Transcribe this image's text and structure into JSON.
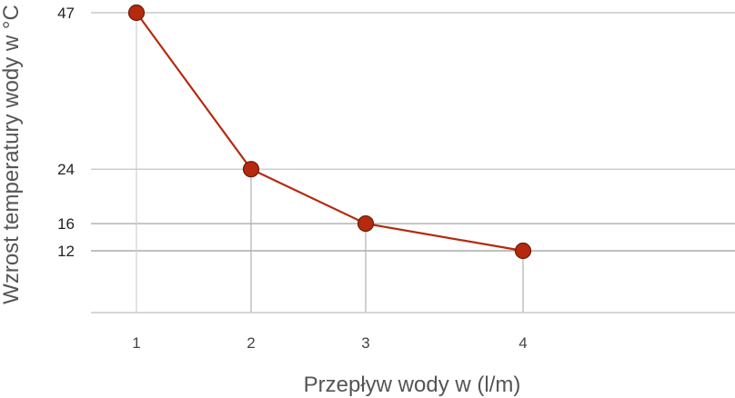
{
  "chart_data": {
    "type": "line",
    "title": "",
    "xlabel": "Przepływ wody w (l/m)",
    "ylabel": "Wzrost temperatury wody w °C",
    "x": [
      1,
      2,
      3,
      4
    ],
    "x_tick_labels": [
      "1",
      "2",
      "3",
      "4"
    ],
    "y_tick_labels": [
      "47",
      "24",
      "16",
      "12"
    ],
    "series": [
      {
        "name": "Wzrost temperatury",
        "values": [
          47,
          24,
          16,
          12
        ],
        "color": "#b5290f",
        "marker_edge": "#6e1a0a"
      }
    ],
    "grid": true,
    "legend": "none",
    "colors": {
      "gridline": "#b8b8b8",
      "dropline": "#c8c8c8",
      "baseline": "#c8c8c8"
    }
  }
}
